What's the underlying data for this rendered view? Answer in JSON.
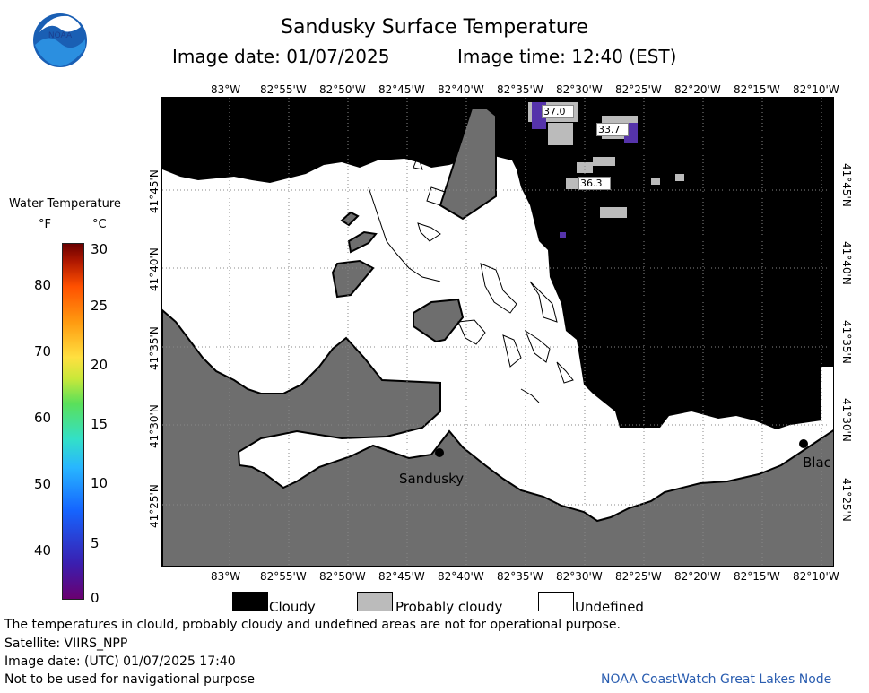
{
  "header": {
    "title": "Sandusky Surface Temperature",
    "image_date": "Image date: 01/07/2025",
    "image_time": "Image time: 12:40 (EST)"
  },
  "logo": {
    "text": "NOAA",
    "icon": "noaa-logo-icon"
  },
  "legend": {
    "title": "Water Temperature",
    "unit_f": "°F",
    "unit_c": "°C",
    "ticks_f": [
      "80",
      "70",
      "60",
      "50",
      "40"
    ],
    "ticks_c": [
      "30",
      "25",
      "20",
      "15",
      "10",
      "5",
      "0"
    ],
    "colorscale": [
      "#6a0070",
      "#3a1fb0",
      "#1565ff",
      "#28b6ff",
      "#33e0c8",
      "#5ae05a",
      "#c8e83a",
      "#ffe040",
      "#ff9a10",
      "#ff5000",
      "#b01800",
      "#6a0000"
    ]
  },
  "axes": {
    "lon_labels": [
      "83°W",
      "82°55'W",
      "82°50'W",
      "82°45'W",
      "82°40'W",
      "82°35'W",
      "82°30'W",
      "82°25'W",
      "82°20'W",
      "82°15'W",
      "82°10'W"
    ],
    "lat_labels": [
      "41°45'N",
      "41°40'N",
      "41°35'N",
      "41°30'N",
      "41°25'N"
    ]
  },
  "map": {
    "cities": [
      {
        "name": "Sandusky"
      },
      {
        "name": "Blac"
      }
    ],
    "temperature_labels": [
      "37.0",
      "33.7",
      "36.3"
    ],
    "colors": {
      "cloudy": "#000000",
      "probably_cloudy": "#bbbbbb",
      "undefined": "#ffffff",
      "land": "#6e6e6e",
      "water_cold": "#5533aa"
    }
  },
  "key": {
    "cloudy": "Cloudy",
    "probably_cloudy": "Probably cloudy",
    "undefined": "Undefined"
  },
  "footer": {
    "disclaimer": "The temperatures in clould, probably cloudy and undefined areas are not for operational purpose.",
    "satellite": "Satellite: VIIRS_NPP",
    "utc_date": "Image date: (UTC) 01/07/2025  17:40",
    "nav_warning": "Not to be used for navigational purpose",
    "credit": "NOAA CoastWatch Great Lakes Node"
  }
}
